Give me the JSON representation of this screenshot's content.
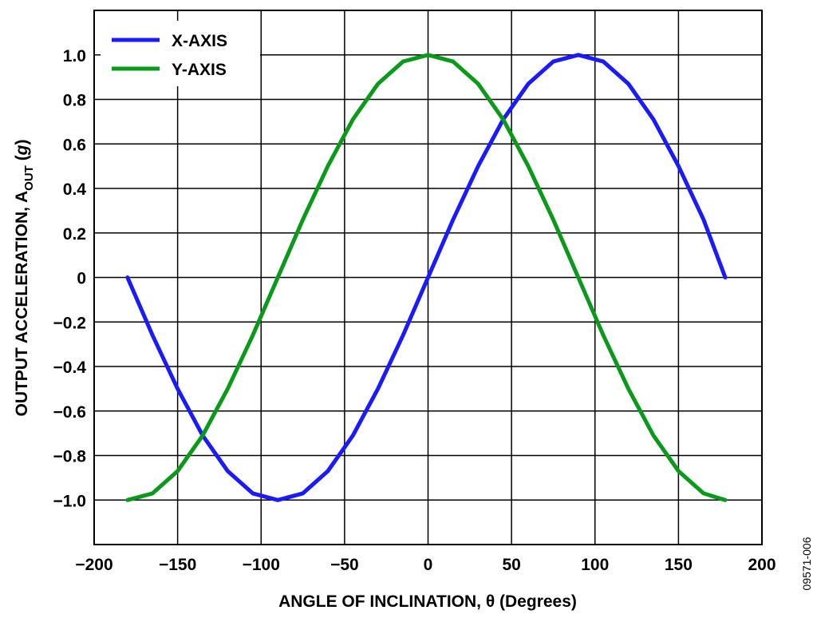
{
  "chart_data": {
    "type": "line",
    "xlabel": "ANGLE OF INCLINATION, θ (Degrees)",
    "ylabel": {
      "main": "OUTPUT ACCELERATION, A",
      "subscript": "OUT",
      "unit_open": " (",
      "unit": "g",
      "unit_close": ")"
    },
    "xlim": [
      -200,
      200
    ],
    "ylim": [
      -1.2,
      1.2
    ],
    "x_ticks": [
      -200,
      -150,
      -100,
      -50,
      0,
      50,
      100,
      150,
      200
    ],
    "x_tick_labels": [
      "−200",
      "−150",
      "−100",
      "−50",
      "0",
      "50",
      "100",
      "150",
      "200"
    ],
    "y_ticks": [
      1.0,
      0.8,
      0.6,
      0.4,
      0.2,
      0,
      -0.2,
      -0.4,
      -0.6,
      -0.8,
      -1.0
    ],
    "y_tick_labels": [
      "1.0",
      "0.8",
      "0.6",
      "0.4",
      "0.2",
      "0",
      "−0.2",
      "−0.4",
      "−0.6",
      "−0.8",
      "−1.0"
    ],
    "grid": true,
    "legend_position": "top-left",
    "series": [
      {
        "name": "X-AXIS",
        "color": "#1a1aff",
        "x": [
          -180,
          -165,
          -150,
          -135,
          -120,
          -105,
          -90,
          -75,
          -60,
          -45,
          -30,
          -15,
          0,
          15,
          30,
          45,
          60,
          75,
          90,
          105,
          120,
          135,
          150,
          165,
          178
        ],
        "y": [
          0.0,
          -0.26,
          -0.5,
          -0.71,
          -0.87,
          -0.97,
          -1.0,
          -0.97,
          -0.87,
          -0.71,
          -0.5,
          -0.26,
          0.0,
          0.26,
          0.5,
          0.71,
          0.87,
          0.97,
          1.0,
          0.97,
          0.87,
          0.71,
          0.5,
          0.26,
          0.0
        ]
      },
      {
        "name": "Y-AXIS",
        "color": "#0a9a1a",
        "x": [
          -180,
          -165,
          -150,
          -135,
          -120,
          -105,
          -90,
          -75,
          -60,
          -45,
          -30,
          -15,
          0,
          15,
          30,
          45,
          60,
          75,
          90,
          105,
          120,
          135,
          150,
          165,
          178
        ],
        "y": [
          -1.0,
          -0.97,
          -0.87,
          -0.71,
          -0.5,
          -0.26,
          0.0,
          0.26,
          0.5,
          0.71,
          0.87,
          0.97,
          1.0,
          0.97,
          0.87,
          0.71,
          0.5,
          0.26,
          0.0,
          -0.26,
          -0.5,
          -0.71,
          -0.87,
          -0.97,
          -1.0
        ]
      }
    ]
  },
  "figure_id": "09571-006"
}
